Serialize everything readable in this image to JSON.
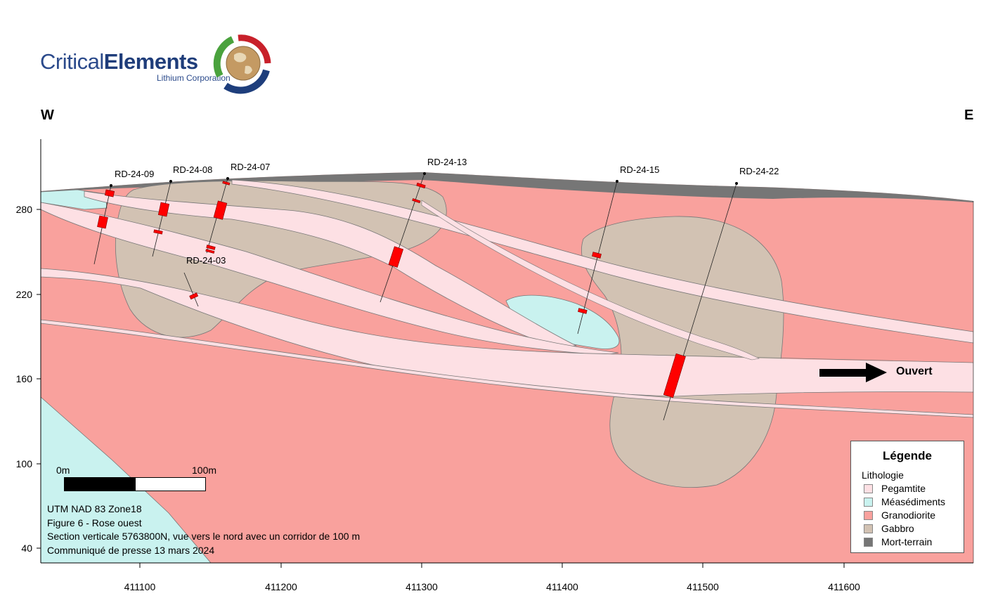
{
  "logo": {
    "word1": "Critical",
    "word2": "Elements",
    "subtitle": "Lithium Corporation"
  },
  "directions": {
    "west": "W",
    "east": "E"
  },
  "axes": {
    "y_ticks": [
      "280",
      "220",
      "160",
      "100",
      "40"
    ],
    "x_ticks": [
      "411100",
      "411200",
      "411300",
      "411400",
      "411500",
      "411600"
    ]
  },
  "drill_holes": [
    "RD-24-09",
    "RD-24-08",
    "RD-24-07",
    "RD-24-03",
    "RD-24-13",
    "RD-24-15",
    "RD-24-22"
  ],
  "annotation": {
    "open_label": "Ouvert"
  },
  "scale_bar": {
    "start_label": "0m",
    "end_label": "100m"
  },
  "notes": [
    "UTM NAD 83 Zone18",
    "Figure 6 - Rose ouest",
    "Section verticale 5763800N, vue vers le nord avec un corridor de 100 m",
    "Communiqué de presse 13 mars 2024"
  ],
  "legend": {
    "title": "Légende",
    "subtitle": "Lithologie",
    "items": [
      {
        "label": "Pegamtite",
        "color": "#fde0e4"
      },
      {
        "label": "Méasédiments",
        "color": "#c9f2ef"
      },
      {
        "label": "Granodiorite",
        "color": "#f9a19d"
      },
      {
        "label": "Gabbro",
        "color": "#d2c2b3"
      },
      {
        "label": "Mort-terrain",
        "color": "#767676"
      }
    ]
  },
  "colors": {
    "pegmatite": "#fde0e4",
    "metasediments": "#c9f2ef",
    "granodiorite": "#f9a19d",
    "gabbro": "#d2c2b3",
    "overburden": "#767676",
    "mineralized_interval": "#ff0000"
  }
}
